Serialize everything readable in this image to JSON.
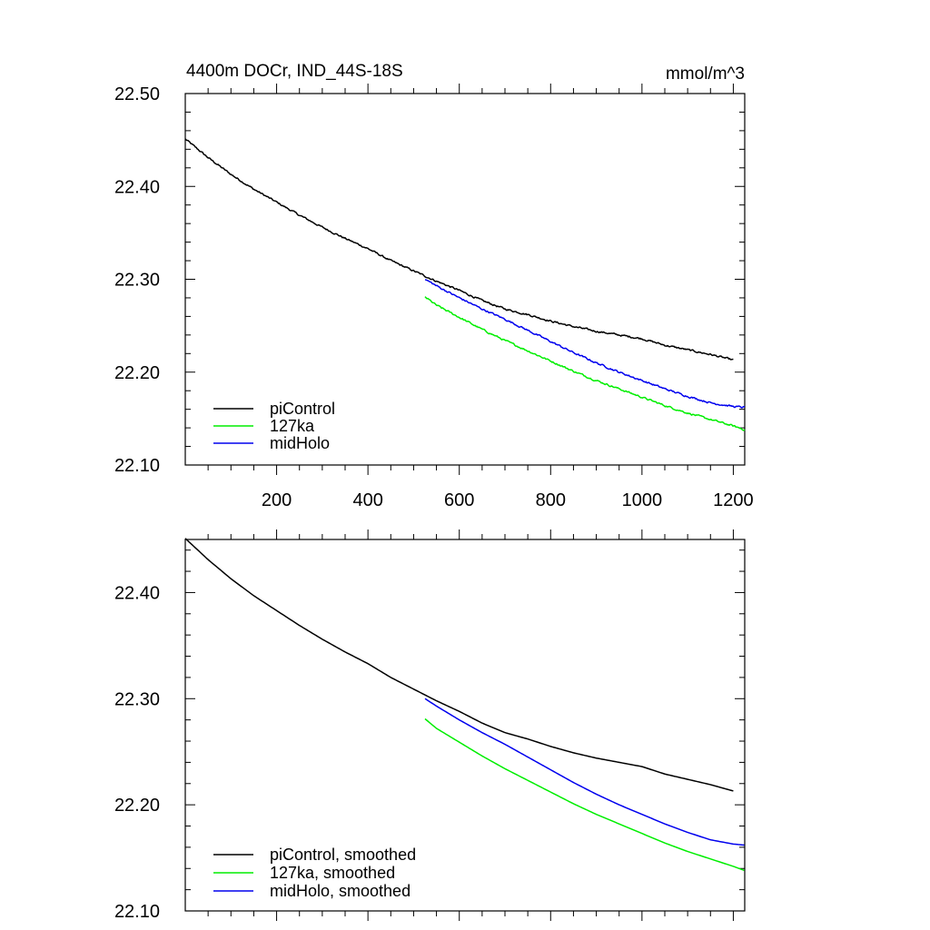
{
  "figure": {
    "title_left": "4400m DOCr, IND_44S-18S",
    "title_right": "mmol/m^3"
  },
  "chart_data": [
    {
      "type": "line",
      "panel": "top",
      "xlim": [
        0,
        1225
      ],
      "ylim": [
        22.1,
        22.5
      ],
      "x_ticks": [
        200,
        400,
        600,
        800,
        1000,
        1200
      ],
      "x_tick_labels": [
        "200",
        "400",
        "600",
        "800",
        "1000",
        "1200"
      ],
      "y_ticks": [
        22.1,
        22.2,
        22.3,
        22.4,
        22.5
      ],
      "y_tick_labels": [
        "22.10",
        "22.20",
        "22.30",
        "22.40",
        "22.50"
      ],
      "legend_position": "bottom-left",
      "series": [
        {
          "name": "piControl",
          "color": "#000000",
          "noisy": true,
          "x": [
            0,
            50,
            100,
            150,
            200,
            250,
            300,
            350,
            400,
            450,
            500,
            550,
            600,
            650,
            700,
            750,
            800,
            850,
            900,
            950,
            1000,
            1050,
            1100,
            1150,
            1200
          ],
          "y": [
            22.451,
            22.431,
            22.413,
            22.397,
            22.383,
            22.369,
            22.356,
            22.344,
            22.333,
            22.32,
            22.309,
            22.298,
            22.288,
            22.277,
            22.268,
            22.262,
            22.255,
            22.249,
            22.244,
            22.24,
            22.236,
            22.229,
            22.224,
            22.219,
            22.213
          ]
        },
        {
          "name": "127ka",
          "color": "#00ee00",
          "noisy": true,
          "x": [
            525,
            550,
            600,
            650,
            700,
            750,
            800,
            850,
            900,
            950,
            1000,
            1050,
            1100,
            1150,
            1200,
            1225
          ],
          "y": [
            22.281,
            22.272,
            22.259,
            22.246,
            22.234,
            22.223,
            22.212,
            22.201,
            22.191,
            22.182,
            22.173,
            22.164,
            22.156,
            22.149,
            22.142,
            22.138
          ]
        },
        {
          "name": "midHolo",
          "color": "#0000ee",
          "noisy": true,
          "x": [
            525,
            550,
            600,
            650,
            700,
            750,
            800,
            850,
            900,
            950,
            1000,
            1050,
            1100,
            1150,
            1200,
            1225
          ],
          "y": [
            22.3,
            22.293,
            22.28,
            22.268,
            22.257,
            22.245,
            22.233,
            22.221,
            22.21,
            22.2,
            22.191,
            22.182,
            22.174,
            22.167,
            22.163,
            22.162
          ]
        }
      ]
    },
    {
      "type": "line",
      "panel": "bottom",
      "xlim": [
        0,
        1225
      ],
      "ylim": [
        22.1,
        22.45
      ],
      "x_ticks": [
        200,
        400,
        600,
        800,
        1000,
        1200
      ],
      "y_ticks": [
        22.1,
        22.2,
        22.3,
        22.4
      ],
      "y_tick_labels": [
        "22.10",
        "22.20",
        "22.30",
        "22.40"
      ],
      "legend_position": "bottom-left",
      "series": [
        {
          "name": "piControl, smoothed",
          "color": "#000000",
          "noisy": false,
          "x": [
            0,
            50,
            100,
            150,
            200,
            250,
            300,
            350,
            400,
            450,
            500,
            550,
            600,
            650,
            700,
            750,
            800,
            850,
            900,
            950,
            1000,
            1050,
            1100,
            1150,
            1200
          ],
          "y": [
            22.451,
            22.431,
            22.413,
            22.397,
            22.383,
            22.369,
            22.356,
            22.344,
            22.333,
            22.32,
            22.309,
            22.298,
            22.288,
            22.277,
            22.268,
            22.262,
            22.255,
            22.249,
            22.244,
            22.24,
            22.236,
            22.229,
            22.224,
            22.219,
            22.213
          ]
        },
        {
          "name": "127ka, smoothed",
          "color": "#00ee00",
          "noisy": false,
          "x": [
            525,
            550,
            600,
            650,
            700,
            750,
            800,
            850,
            900,
            950,
            1000,
            1050,
            1100,
            1150,
            1200,
            1225
          ],
          "y": [
            22.281,
            22.272,
            22.259,
            22.246,
            22.234,
            22.223,
            22.212,
            22.201,
            22.191,
            22.182,
            22.173,
            22.164,
            22.156,
            22.149,
            22.142,
            22.138
          ]
        },
        {
          "name": "midHolo, smoothed",
          "color": "#0000ee",
          "noisy": false,
          "x": [
            525,
            550,
            600,
            650,
            700,
            750,
            800,
            850,
            900,
            950,
            1000,
            1050,
            1100,
            1150,
            1200,
            1225
          ],
          "y": [
            22.3,
            22.293,
            22.28,
            22.268,
            22.257,
            22.245,
            22.233,
            22.221,
            22.21,
            22.2,
            22.191,
            22.182,
            22.174,
            22.167,
            22.163,
            22.162
          ]
        }
      ]
    }
  ]
}
